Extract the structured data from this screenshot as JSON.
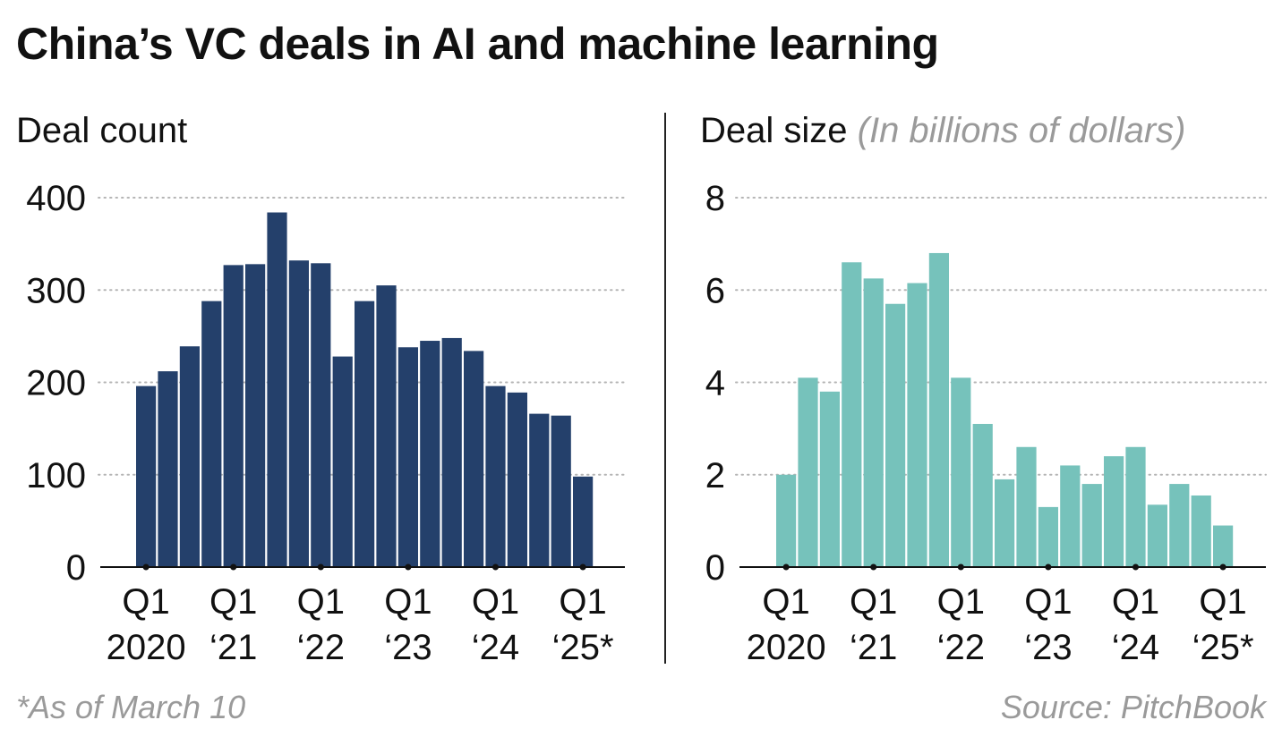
{
  "title": "China’s VC deals in AI and machine learning",
  "footnote": "*As of March 10",
  "source": "Source: PitchBook",
  "chart_data": [
    {
      "type": "bar",
      "title": "Deal count",
      "unit_note": "",
      "color": "#24406b",
      "quarters": [
        "Q1 2020",
        "Q2 2020",
        "Q3 2020",
        "Q4 2020",
        "Q1 2021",
        "Q2 2021",
        "Q3 2021",
        "Q4 2021",
        "Q1 2022",
        "Q2 2022",
        "Q3 2022",
        "Q4 2022",
        "Q1 2023",
        "Q2 2023",
        "Q3 2023",
        "Q4 2023",
        "Q1 2024",
        "Q2 2024",
        "Q3 2024",
        "Q4 2024",
        "Q1 2025"
      ],
      "values": [
        196,
        212,
        239,
        288,
        327,
        328,
        384,
        332,
        329,
        228,
        288,
        305,
        238,
        245,
        248,
        234,
        196,
        189,
        166,
        164,
        98
      ],
      "ylim": [
        0,
        400
      ],
      "yticks": [
        "0",
        "100",
        "200",
        "300",
        "400"
      ],
      "xtick_labels": [
        {
          "line1": "Q1",
          "line2": "2020"
        },
        {
          "line1": "Q1",
          "line2": "‘21"
        },
        {
          "line1": "Q1",
          "line2": "‘22"
        },
        {
          "line1": "Q1",
          "line2": "‘23"
        },
        {
          "line1": "Q1",
          "line2": "‘24"
        },
        {
          "line1": "Q1",
          "line2": "‘25*"
        }
      ],
      "grid": true
    },
    {
      "type": "bar",
      "title": "Deal size",
      "unit_note": "(In billions of dollars)",
      "color": "#76c2bb",
      "quarters": [
        "Q1 2020",
        "Q2 2020",
        "Q3 2020",
        "Q4 2020",
        "Q1 2021",
        "Q2 2021",
        "Q3 2021",
        "Q4 2021",
        "Q1 2022",
        "Q2 2022",
        "Q3 2022",
        "Q4 2022",
        "Q1 2023",
        "Q2 2023",
        "Q3 2023",
        "Q4 2023",
        "Q1 2024",
        "Q2 2024",
        "Q3 2024",
        "Q4 2024",
        "Q1 2025"
      ],
      "values": [
        2.0,
        4.1,
        3.8,
        6.6,
        6.25,
        5.7,
        6.15,
        6.8,
        4.1,
        3.1,
        1.9,
        2.6,
        1.3,
        2.2,
        1.8,
        2.4,
        2.6,
        1.35,
        1.8,
        1.55,
        0.9
      ],
      "ylim": [
        0,
        8
      ],
      "yticks": [
        "0",
        "2",
        "4",
        "6",
        "8"
      ],
      "xtick_labels": [
        {
          "line1": "Q1",
          "line2": "2020"
        },
        {
          "line1": "Q1",
          "line2": "‘21"
        },
        {
          "line1": "Q1",
          "line2": "‘22"
        },
        {
          "line1": "Q1",
          "line2": "‘23"
        },
        {
          "line1": "Q1",
          "line2": "‘24"
        },
        {
          "line1": "Q1",
          "line2": "‘25*"
        }
      ],
      "grid": true
    }
  ]
}
